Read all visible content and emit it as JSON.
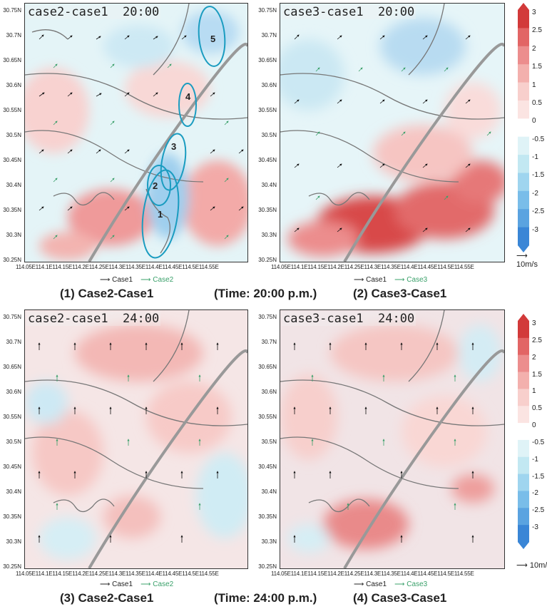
{
  "panels": [
    {
      "id": "p1",
      "label": "case2-case1  20:00",
      "pos": "top-left",
      "legend_a": "Case1",
      "legend_b": "Case2",
      "caption": "(1) Case2-Case1"
    },
    {
      "id": "p2",
      "label": "case3-case1  20:00",
      "pos": "top-right",
      "legend_a": "Case1",
      "legend_b": "Case3",
      "caption": "(2) Case3-Case1"
    },
    {
      "id": "p3",
      "label": "case2-case1  24:00",
      "pos": "bottom-left",
      "legend_a": "Case1",
      "legend_b": "Case2",
      "caption": "(3) Case2-Case1"
    },
    {
      "id": "p4",
      "label": "case3-case1  24:00",
      "pos": "bottom-right",
      "legend_a": "Case1",
      "legend_b": "Case3",
      "caption": "(4) Case3-Case1"
    }
  ],
  "time_captions": {
    "top": "(Time: 20:00 p.m.)",
    "bottom": "(Time: 24:00 p.m.)"
  },
  "y_ticks": [
    "30.75N",
    "30.7N",
    "30.65N",
    "30.6N",
    "30.55N",
    "30.5N",
    "30.45N",
    "30.4N",
    "30.35N",
    "30.3N",
    "30.25N"
  ],
  "x_ticks_text": "114.05E114.1E114.15E114.2E114.25E114.3E114.35E114.4E114.45E114.5E114.55E",
  "colorbar": {
    "ticks": [
      "3",
      "2.5",
      "2",
      "1.5",
      "1",
      "0.5",
      "0",
      "-0.5",
      "-1",
      "-1.5",
      "-2",
      "-2.5",
      "-3"
    ],
    "colors": [
      "#d23a3a",
      "#e26565",
      "#ec8d8d",
      "#f3b0ad",
      "#f8cfcc",
      "#fbe4e2",
      "#ffffff",
      "#dff3f7",
      "#c2e8f2",
      "#9fd5ef",
      "#79bde9",
      "#5aa3e0",
      "#3a86d6"
    ],
    "unit": "10m/s"
  },
  "regions": [
    "1",
    "2",
    "3",
    "4",
    "5"
  ]
}
